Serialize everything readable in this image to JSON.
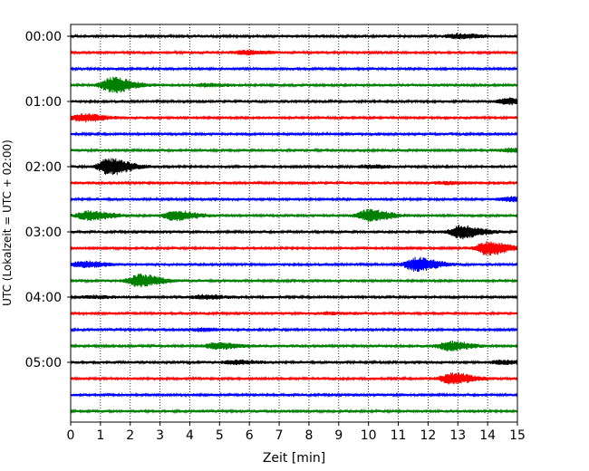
{
  "chart_data": {
    "type": "line",
    "title": "",
    "xlabel": "Zeit  [min]",
    "ylabel": "UTC (Lokalzeit = UTC + 02:00)",
    "xlim": [
      0,
      15
    ],
    "x_ticks": [
      0,
      1,
      2,
      3,
      4,
      5,
      6,
      7,
      8,
      9,
      10,
      11,
      12,
      13,
      14,
      15
    ],
    "y_tick_labels": [
      "00:00",
      "01:00",
      "02:00",
      "03:00",
      "04:00",
      "05:00"
    ],
    "grid": "vertical-dotted",
    "row_interval_minutes": 15,
    "color_cycle": [
      "#000000",
      "#ff0000",
      "#0000ff",
      "#008000"
    ],
    "rows": [
      {
        "start": "00:00",
        "color": "#000000",
        "events": [
          {
            "t": 13.0,
            "amp": 0.25
          }
        ]
      },
      {
        "start": "00:15",
        "color": "#ff0000",
        "events": [
          {
            "t": 5.9,
            "amp": 0.2
          }
        ]
      },
      {
        "start": "00:30",
        "color": "#0000ff",
        "events": []
      },
      {
        "start": "00:45",
        "color": "#008000",
        "events": [
          {
            "t": 1.4,
            "amp": 0.9
          },
          {
            "t": 4.5,
            "amp": 0.15
          }
        ]
      },
      {
        "start": "01:00",
        "color": "#000000",
        "events": [
          {
            "t": 14.7,
            "amp": 0.35
          }
        ]
      },
      {
        "start": "01:15",
        "color": "#ff0000",
        "events": [
          {
            "t": 0.4,
            "amp": 0.45
          }
        ]
      },
      {
        "start": "01:30",
        "color": "#0000ff",
        "events": []
      },
      {
        "start": "01:45",
        "color": "#008000",
        "events": [
          {
            "t": 14.8,
            "amp": 0.2
          }
        ]
      },
      {
        "start": "02:00",
        "color": "#000000",
        "events": [
          {
            "t": 1.3,
            "amp": 1.0
          },
          {
            "t": 10.0,
            "amp": 0.15
          }
        ]
      },
      {
        "start": "02:15",
        "color": "#ff0000",
        "events": [
          {
            "t": 12.5,
            "amp": 0.12
          }
        ]
      },
      {
        "start": "02:30",
        "color": "#0000ff",
        "events": [
          {
            "t": 14.8,
            "amp": 0.25
          }
        ]
      },
      {
        "start": "02:45",
        "color": "#008000",
        "events": [
          {
            "t": 0.6,
            "amp": 0.55
          },
          {
            "t": 3.5,
            "amp": 0.55
          },
          {
            "t": 10.0,
            "amp": 0.7
          }
        ]
      },
      {
        "start": "03:00",
        "color": "#000000",
        "events": [
          {
            "t": 13.1,
            "amp": 0.75
          }
        ]
      },
      {
        "start": "03:15",
        "color": "#ff0000",
        "events": [
          {
            "t": 14.0,
            "amp": 0.8
          }
        ]
      },
      {
        "start": "03:30",
        "color": "#0000ff",
        "events": [
          {
            "t": 0.4,
            "amp": 0.35
          },
          {
            "t": 11.6,
            "amp": 0.8
          }
        ]
      },
      {
        "start": "03:45",
        "color": "#008000",
        "events": [
          {
            "t": 2.3,
            "amp": 0.75
          }
        ]
      },
      {
        "start": "04:00",
        "color": "#000000",
        "events": [
          {
            "t": 4.4,
            "amp": 0.2
          },
          {
            "t": 0.7,
            "amp": 0.12
          }
        ]
      },
      {
        "start": "04:15",
        "color": "#ff0000",
        "events": [
          {
            "t": 8.7,
            "amp": 0.1
          }
        ]
      },
      {
        "start": "04:30",
        "color": "#0000ff",
        "events": [
          {
            "t": 4.3,
            "amp": 0.15
          }
        ]
      },
      {
        "start": "04:45",
        "color": "#008000",
        "events": [
          {
            "t": 4.9,
            "amp": 0.35
          },
          {
            "t": 12.7,
            "amp": 0.55
          }
        ]
      },
      {
        "start": "05:00",
        "color": "#000000",
        "events": [
          {
            "t": 5.5,
            "amp": 0.2
          },
          {
            "t": 14.5,
            "amp": 0.2
          }
        ]
      },
      {
        "start": "05:15",
        "color": "#ff0000",
        "events": [
          {
            "t": 12.8,
            "amp": 0.65
          }
        ]
      },
      {
        "start": "05:30",
        "color": "#0000ff",
        "events": []
      },
      {
        "start": "05:45",
        "color": "#008000",
        "events": []
      }
    ]
  }
}
